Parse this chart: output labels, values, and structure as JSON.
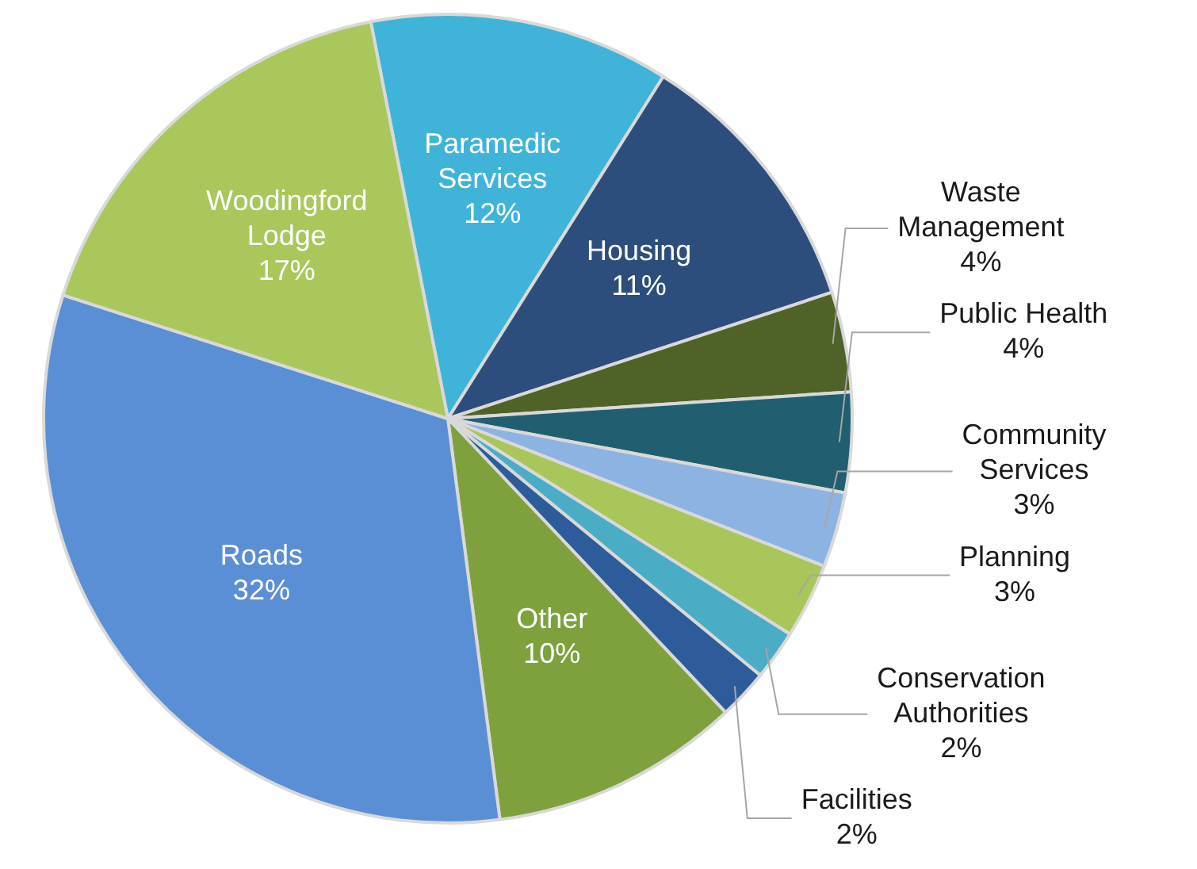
{
  "chart_data": {
    "type": "pie",
    "categories": [
      "Paramedic Services",
      "Housing",
      "Waste Management",
      "Public Health",
      "Community Services",
      "Planning",
      "Conservation Authorities",
      "Facilities",
      "Other",
      "Roads",
      "Woodingford Lodge"
    ],
    "values": [
      12,
      11,
      4,
      4,
      3,
      3,
      2,
      2,
      10,
      32,
      17
    ],
    "value_labels": [
      "12%",
      "11%",
      "4%",
      "4%",
      "3%",
      "3%",
      "2%",
      "2%",
      "10%",
      "32%",
      "17%"
    ],
    "colors": [
      "#40b4d8",
      "#2d4e7c",
      "#4f6228",
      "#215e70",
      "#8db3e2",
      "#a8c65a",
      "#4bacc6",
      "#2e5c9a",
      "#7ea13d",
      "#5b8fd5",
      "#aac75c"
    ],
    "legend": false
  }
}
